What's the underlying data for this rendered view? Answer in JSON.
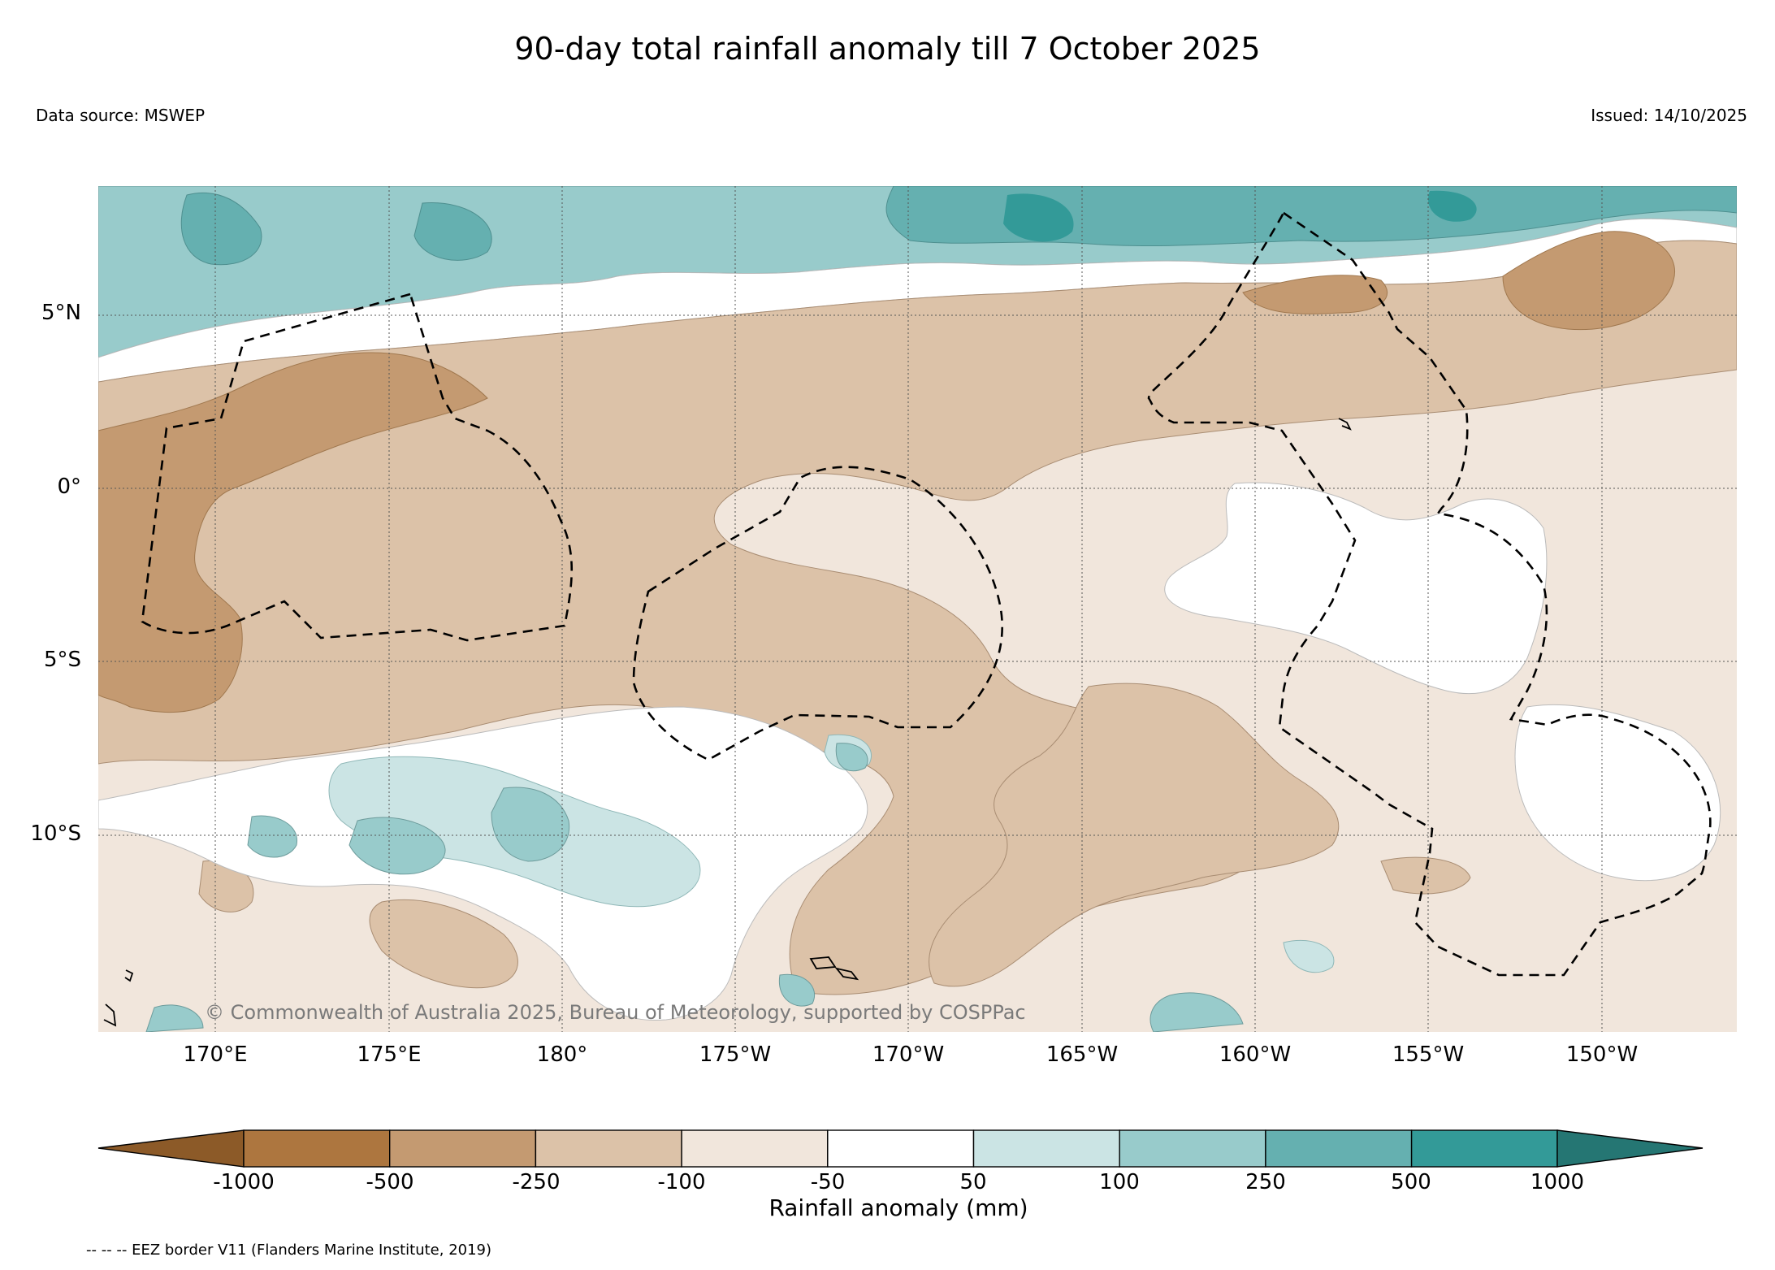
{
  "title": "90-day total rainfall anomaly till 7 October 2025",
  "data_source": "Data source: MSWEP",
  "issued": "Issued: 14/10/2025",
  "copyright": "© Commonwealth of Australia 2025, Bureau of Meteorology, supported by COSPPac",
  "legend_note": "-- -- -- EEZ border V11 (Flanders Marine Institute, 2019)",
  "map": {
    "lat_labels": [
      "5°N",
      "0°",
      "5°S",
      "10°S"
    ],
    "lon_labels": [
      "170°E",
      "175°E",
      "180°",
      "175°W",
      "170°W",
      "165°W",
      "160°W",
      "155°W",
      "150°W"
    ]
  },
  "colorbar": {
    "title": "Rainfall anomaly (mm)",
    "tick_labels": [
      "-1000",
      "-500",
      "-250",
      "-100",
      "-50",
      "50",
      "100",
      "250",
      "500",
      "1000"
    ],
    "colors": [
      "#8c5a28",
      "#ad763f",
      "#c49a71",
      "#dcc2a8",
      "#f1e6dc",
      "#ffffff",
      "#cbe4e4",
      "#98cbcb",
      "#65b0b0",
      "#339a98",
      "#257673"
    ]
  },
  "palette": {
    "dry_strong": "#c49a71",
    "dry_medium": "#dcc2a8",
    "dry_light": "#f1e6dc",
    "neutral": "#ffffff",
    "wet_light": "#cbe4e4",
    "wet_medium": "#98cbcb",
    "wet_strong": "#65b0b0",
    "wet_very_strong": "#339a98"
  }
}
